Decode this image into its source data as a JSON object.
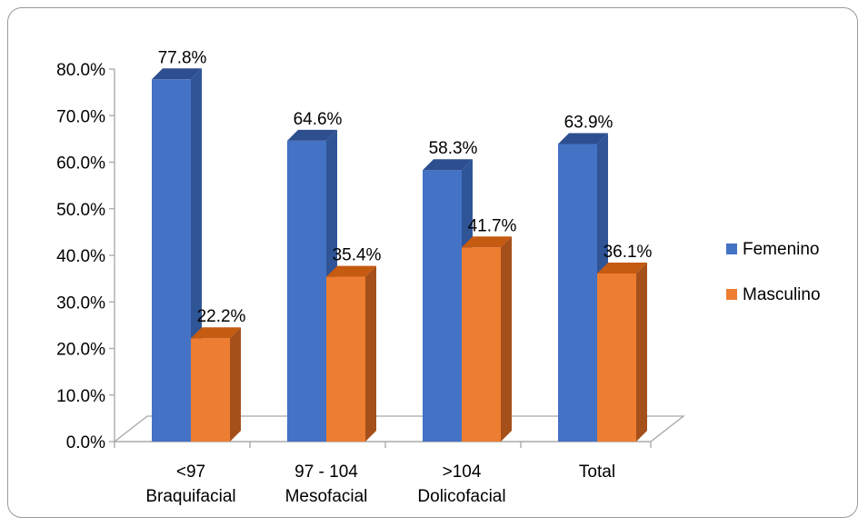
{
  "chart_data": {
    "type": "bar",
    "title": "",
    "xlabel": "",
    "ylabel": "",
    "categories": [
      [
        "<97",
        "Braquifacial"
      ],
      [
        "97 - 104",
        "Mesofacial"
      ],
      [
        ">104",
        "Dolicofacial"
      ],
      [
        "Total"
      ]
    ],
    "series": [
      {
        "name": "Femenino",
        "values": [
          77.8,
          64.6,
          58.3,
          63.9
        ],
        "labels": [
          "77.8%",
          "64.6%",
          "58.3%",
          "63.9%"
        ]
      },
      {
        "name": "Masculino",
        "values": [
          22.2,
          35.4,
          41.7,
          36.1
        ],
        "labels": [
          "22.2%",
          "35.4%",
          "41.7%",
          "36.1%"
        ]
      }
    ],
    "ylim": [
      0,
      80
    ],
    "yticks": [
      0,
      10,
      20,
      30,
      40,
      50,
      60,
      70,
      80
    ],
    "ytick_labels": [
      "0.0%",
      "10.0%",
      "20.0%",
      "30.0%",
      "40.0%",
      "50.0%",
      "60.0%",
      "70.0%",
      "80.0%"
    ],
    "grid": false,
    "legend_position": "right",
    "style": "3d-column",
    "colors": {
      "Femenino": {
        "front": "#4472c4",
        "side": "#2f5597",
        "top": "#2e4f8f"
      },
      "Masculino": {
        "front": "#ed7d31",
        "side": "#a5501b",
        "top": "#c55a11"
      }
    }
  }
}
